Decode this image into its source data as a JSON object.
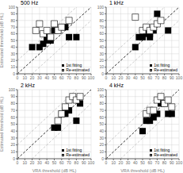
{
  "chart_data": [
    {
      "type": "scatter",
      "title": "500 Hz",
      "ylabel": "Estimated threshold (dB HL)",
      "xlim": [
        0,
        100
      ],
      "ylim": [
        0,
        100
      ],
      "xticks": [
        0,
        10,
        20,
        30,
        40,
        50,
        60,
        70,
        80,
        90,
        100
      ],
      "yticks": [
        0,
        10,
        20,
        30,
        40,
        50,
        60,
        70,
        80,
        90,
        100
      ],
      "grid": true,
      "legend": "lower right",
      "reference_lines": [
        {
          "offset": 20,
          "color": "#aaaaaa",
          "line_style": "dashed"
        },
        {
          "offset": -20,
          "color": "#aaaaaa",
          "line_style": "dashed"
        },
        {
          "offset": 0,
          "color": "black",
          "line_style": "dashed"
        }
      ],
      "series": [
        {
          "name": "1st fitting",
          "color": "black",
          "marker": "square",
          "values": [
            [
              20,
              40
            ],
            [
              30,
              40
            ],
            [
              35,
              45
            ],
            [
              40,
              50
            ],
            [
              40,
              55
            ],
            [
              45,
              50
            ],
            [
              50,
              65
            ],
            [
              55,
              65
            ],
            [
              60,
              70
            ],
            [
              65,
              70
            ],
            [
              70,
              55
            ],
            [
              80,
              55
            ]
          ]
        },
        {
          "name": "Re-estimated",
          "color": "black",
          "marker": "open_square",
          "values": [
            [
              25,
              65
            ],
            [
              30,
              75
            ],
            [
              35,
              60
            ],
            [
              40,
              65
            ],
            [
              45,
              55
            ],
            [
              50,
              75
            ],
            [
              55,
              65
            ],
            [
              60,
              70
            ],
            [
              70,
              80
            ]
          ]
        }
      ]
    },
    {
      "type": "scatter",
      "title": "1 kHz",
      "xlim": [
        0,
        100
      ],
      "ylim": [
        0,
        100
      ],
      "xticks": [
        0,
        10,
        20,
        30,
        40,
        50,
        60,
        70,
        80,
        90,
        100
      ],
      "yticks": [
        0,
        10,
        20,
        30,
        40,
        50,
        60,
        70,
        80,
        90,
        100
      ],
      "grid": true,
      "legend": "lower right",
      "reference_lines": [
        {
          "offset": 20,
          "color": "#aaaaaa",
          "line_style": "dashed"
        },
        {
          "offset": -20,
          "color": "#aaaaaa",
          "line_style": "dashed"
        },
        {
          "offset": 0,
          "color": "black",
          "line_style": "dashed"
        }
      ],
      "series": [
        {
          "name": "1st fitting",
          "color": "black",
          "marker": "square",
          "values": [
            [
              40,
              40
            ],
            [
              45,
              55
            ],
            [
              50,
              55
            ],
            [
              55,
              60
            ],
            [
              55,
              65
            ],
            [
              60,
              55
            ],
            [
              60,
              60
            ],
            [
              65,
              65
            ],
            [
              70,
              90
            ],
            [
              85,
              65
            ]
          ]
        },
        {
          "name": "Re-estimated",
          "color": "black",
          "marker": "open_square",
          "values": [
            [
              40,
              85
            ],
            [
              50,
              65
            ],
            [
              55,
              70
            ],
            [
              60,
              65
            ],
            [
              65,
              70
            ],
            [
              70,
              75
            ],
            [
              75,
              80
            ]
          ]
        }
      ]
    },
    {
      "type": "scatter",
      "title": "2 kHz",
      "xlabel": "VRA threshold (dB HL)",
      "ylabel": "Estimated threshold (dB HL)",
      "xlim": [
        0,
        100
      ],
      "ylim": [
        0,
        100
      ],
      "xticks": [
        0,
        10,
        20,
        30,
        40,
        50,
        60,
        70,
        80,
        90,
        100
      ],
      "yticks": [
        0,
        10,
        20,
        30,
        40,
        50,
        60,
        70,
        80,
        90,
        100
      ],
      "grid": true,
      "legend": "lower right",
      "reference_lines": [
        {
          "offset": 20,
          "color": "#aaaaaa",
          "line_style": "dashed"
        },
        {
          "offset": -20,
          "color": "#aaaaaa",
          "line_style": "dashed"
        },
        {
          "offset": 0,
          "color": "black",
          "line_style": "dashed"
        }
      ],
      "series": [
        {
          "name": "1st fitting",
          "color": "black",
          "marker": "square",
          "values": [
            [
              50,
              45
            ],
            [
              55,
              45
            ],
            [
              60,
              65
            ],
            [
              65,
              70
            ],
            [
              65,
              65
            ],
            [
              70,
              70
            ],
            [
              80,
              55
            ],
            [
              85,
              80
            ]
          ]
        },
        {
          "name": "Re-estimated",
          "color": "black",
          "marker": "open_square",
          "values": [
            [
              55,
              55
            ],
            [
              60,
              65
            ],
            [
              65,
              75
            ],
            [
              70,
              85
            ],
            [
              75,
              90
            ],
            [
              80,
              85
            ],
            [
              85,
              90
            ]
          ]
        }
      ]
    },
    {
      "type": "scatter",
      "title": "4 kHz",
      "xlabel": "VRA threshold (dB HL)",
      "xlim": [
        0,
        100
      ],
      "ylim": [
        0,
        100
      ],
      "xticks": [
        0,
        10,
        20,
        30,
        40,
        50,
        60,
        70,
        80,
        90,
        100
      ],
      "yticks": [
        0,
        10,
        20,
        30,
        40,
        50,
        60,
        70,
        80,
        90,
        100
      ],
      "grid": true,
      "legend": "lower right",
      "reference_lines": [
        {
          "offset": 20,
          "color": "#aaaaaa",
          "line_style": "dashed"
        },
        {
          "offset": -20,
          "color": "#aaaaaa",
          "line_style": "dashed"
        },
        {
          "offset": 0,
          "color": "black",
          "line_style": "dashed"
        }
      ],
      "series": [
        {
          "name": "1st fitting",
          "color": "black",
          "marker": "square",
          "values": [
            [
              50,
              40
            ],
            [
              55,
              55
            ],
            [
              60,
              55
            ],
            [
              65,
              60
            ],
            [
              70,
              65
            ],
            [
              75,
              80
            ],
            [
              80,
              80
            ],
            [
              85,
              65
            ],
            [
              90,
              65
            ]
          ]
        },
        {
          "name": "Re-estimated",
          "color": "black",
          "marker": "open_square",
          "values": [
            [
              55,
              65
            ],
            [
              60,
              70
            ],
            [
              65,
              70
            ],
            [
              70,
              85
            ],
            [
              75,
              90
            ],
            [
              80,
              80
            ],
            [
              85,
              85
            ],
            [
              90,
              75
            ]
          ]
        }
      ]
    }
  ]
}
